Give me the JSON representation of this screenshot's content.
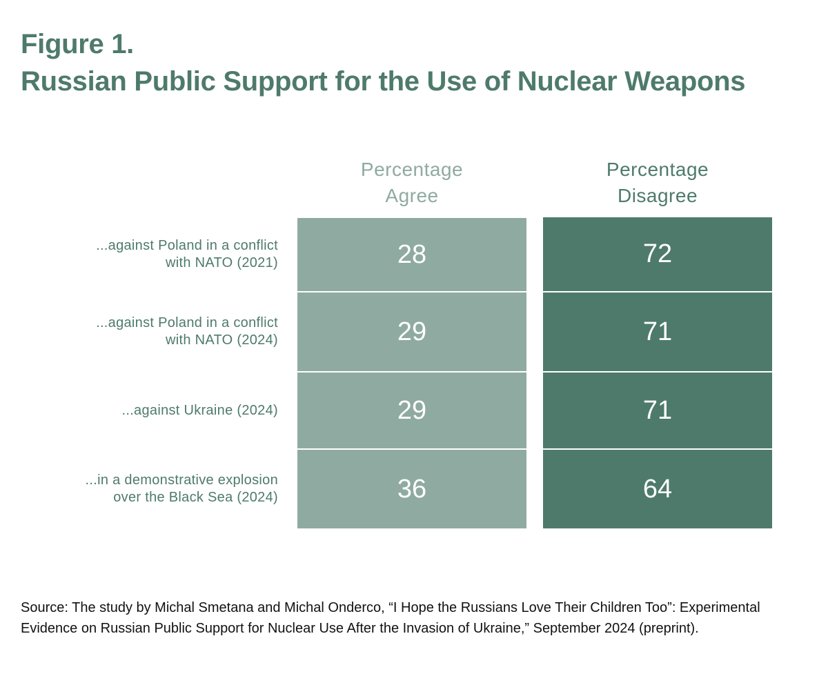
{
  "figure_label": "Figure 1.",
  "title": "Russian Public Support for the Use of Nuclear Weapons",
  "colors": {
    "title": "#4e7a6c",
    "agree": "#8faaa1",
    "disagree": "#4e7a6c"
  },
  "chart_data": {
    "type": "table",
    "columns": [
      {
        "line1": "Percentage",
        "line2": "Agree"
      },
      {
        "line1": "Percentage",
        "line2": "Disagree"
      }
    ],
    "rows": [
      {
        "label1": "...against Poland in a conflict",
        "label2": "with NATO (2021)",
        "agree": 28,
        "disagree": 72
      },
      {
        "label1": "...against Poland in a conflict",
        "label2": "with NATO (2024)",
        "agree": 29,
        "disagree": 71
      },
      {
        "label1": "...against Ukraine (2024)",
        "label2": "",
        "agree": 29,
        "disagree": 71
      },
      {
        "label1": "...in a demonstrative explosion",
        "label2": "over the Black Sea (2024)",
        "agree": 36,
        "disagree": 64
      }
    ]
  },
  "source": "Source: The study by Michal Smetana and Michal Onderco, “I Hope the Russians Love Their Children Too”: Experimental Evidence on Russian Public Support for Nuclear Use After the Invasion of Ukraine,” September 2024 (preprint)."
}
